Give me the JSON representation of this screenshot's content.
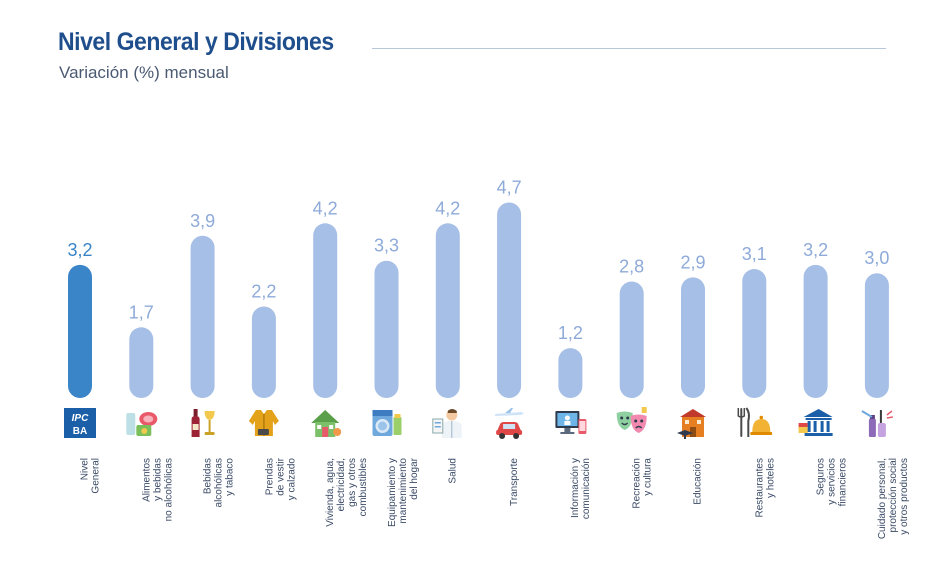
{
  "title": "Nivel General y Divisiones",
  "subtitle": "Variación (%) mensual",
  "colors": {
    "highlight": "#3a84c8",
    "bar": "#a6bfe6",
    "highlight_label": "#3a84c8",
    "label": "#8eaad9",
    "title": "#1f4e8c"
  },
  "chart_data": {
    "type": "bar",
    "title": "Nivel General y Divisiones",
    "subtitle": "Variación (%) mensual",
    "categories": [
      "Nivel\nGeneral",
      "Alimentos\ny bebidas\nno alcohólicas",
      "Bebidas\nalcohólicas\ny tabaco",
      "Prendas\nde vestir\ny calzado",
      "Vivienda, agua,\nelectricidad,\ngas y otros\ncombustibles",
      "Equipamiento y\nmantenimiento\ndel hogar",
      "Salud",
      "Transporte",
      "Información y\ncomunicación",
      "Recreación\ny cultura",
      "Educación",
      "Restaurantes\ny hoteles",
      "Seguros\ny servicios\nfinancieros",
      "Cuidado personal,\nprotección social\ny otros productos"
    ],
    "values": [
      3.2,
      1.7,
      3.9,
      2.2,
      4.2,
      3.3,
      4.2,
      4.7,
      1.2,
      2.8,
      2.9,
      3.1,
      3.2,
      3.0
    ],
    "value_labels": [
      "3,2",
      "1,7",
      "3,9",
      "2,2",
      "4,2",
      "3,3",
      "4,2",
      "4,7",
      "1,2",
      "2,8",
      "2,9",
      "3,1",
      "3,2",
      "3,0"
    ],
    "highlighted_index": 0,
    "icons": [
      "ipc-ba-logo-icon",
      "food-icon",
      "wine-bottle-icon",
      "jacket-icon",
      "house-icon",
      "washing-machine-icon",
      "doctor-icon",
      "car-plane-icon",
      "computer-phone-icon",
      "theater-masks-icon",
      "school-building-icon",
      "cutlery-cloche-icon",
      "bank-icon",
      "cosmetics-icon"
    ],
    "icon_text": "IPC BA",
    "xlabel": "",
    "ylabel": "",
    "ylim": [
      0,
      5
    ],
    "grid": false,
    "legend": "none"
  }
}
